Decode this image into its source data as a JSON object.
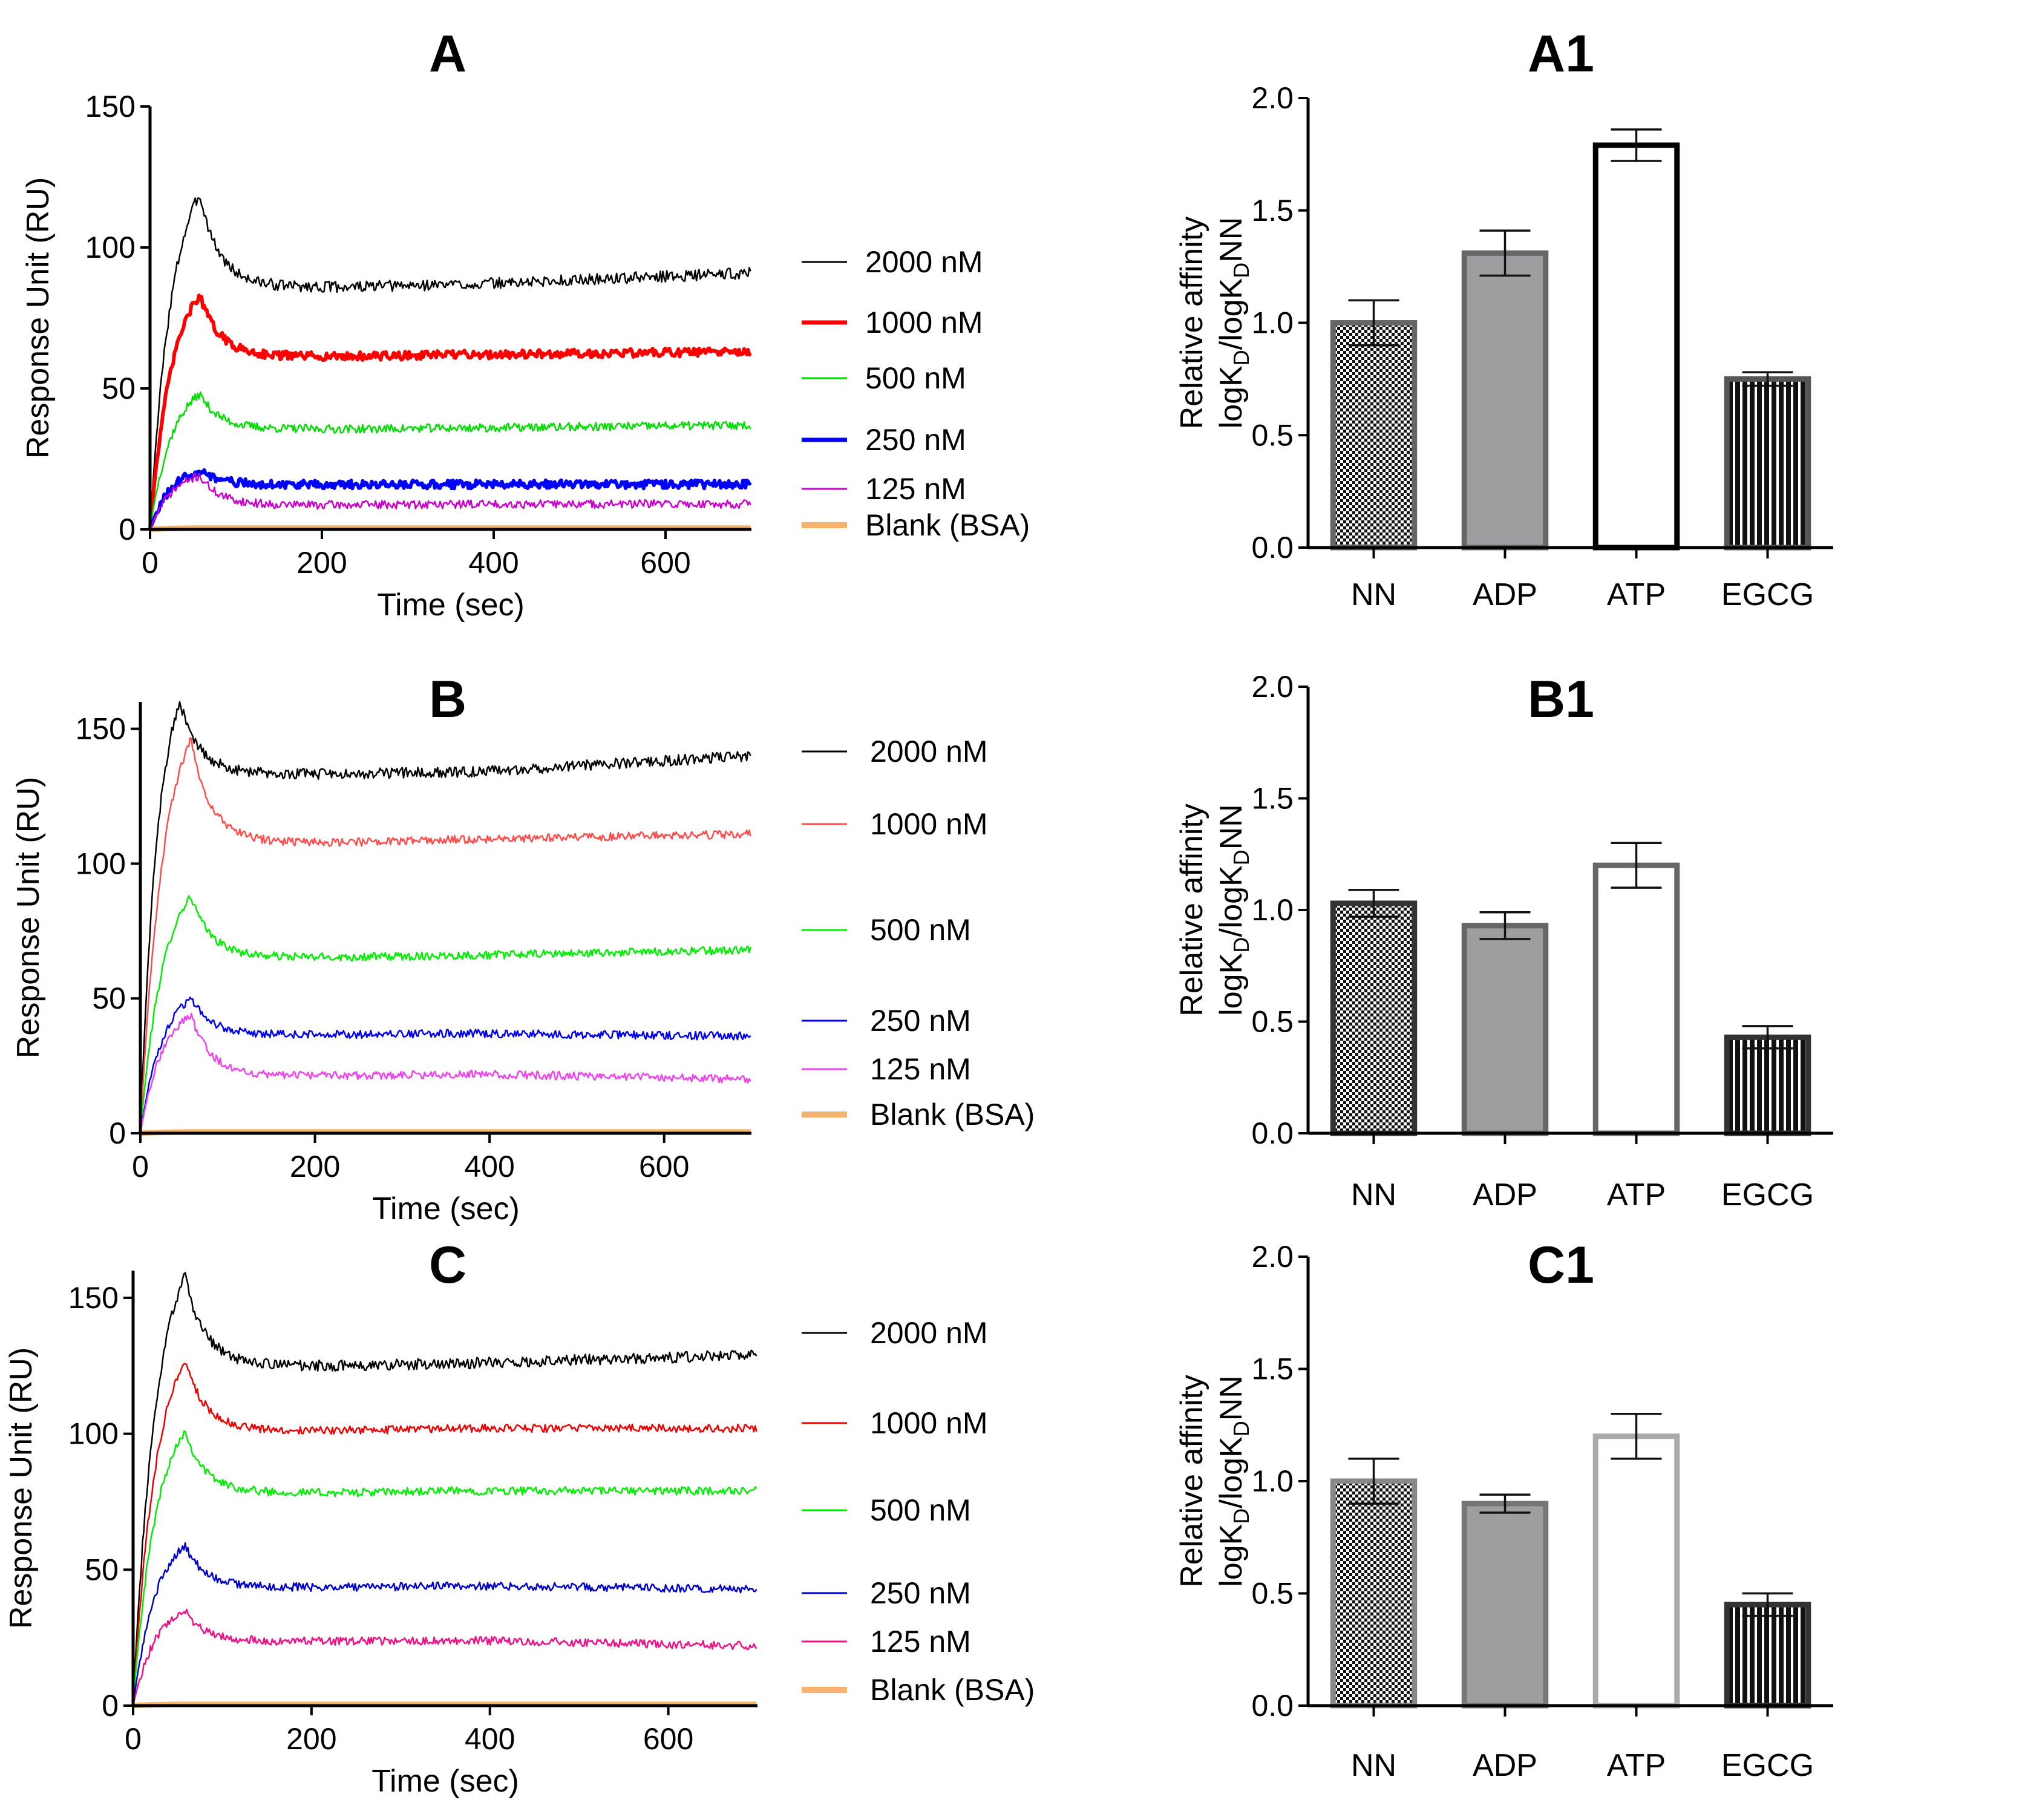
{
  "chart_data": [
    {
      "id": "A",
      "type": "line",
      "title": "A",
      "xlabel": "Time (sec)",
      "ylabel": "Response Unit (RU)",
      "xlim": [
        0,
        700
      ],
      "ylim": [
        0,
        150
      ],
      "xticks": [
        "0",
        "200",
        "400",
        "600"
      ],
      "yticks": [
        "0",
        "50",
        "100",
        "150"
      ],
      "grid": false,
      "legend_position": "right",
      "series": [
        {
          "name": "2000 nM",
          "color": "#000000",
          "width": "thin",
          "peak_time": 58,
          "peak": 119,
          "plateau": 87,
          "end": 91,
          "noise": 2
        },
        {
          "name": "1000 nM",
          "color": "#ff0000",
          "width": "thick",
          "peak_time": 58,
          "peak": 83,
          "plateau": 62,
          "end": 63,
          "noise": 1.5
        },
        {
          "name": "500 nM",
          "color": "#00dd00",
          "width": "thin",
          "peak_time": 58,
          "peak": 48,
          "plateau": 36,
          "end": 37,
          "noise": 1.5
        },
        {
          "name": "250 nM",
          "color": "#0000ff",
          "width": "thick",
          "peak_time": 58,
          "peak": 21,
          "plateau": 16,
          "end": 16,
          "noise": 1.5
        },
        {
          "name": "125 nM",
          "color": "#cc00cc",
          "width": "thin",
          "peak_time": 58,
          "peak": 19,
          "plateau": 9,
          "end": 9,
          "noise": 1.5
        },
        {
          "name": "Blank (BSA)",
          "color": "#f7b36b",
          "width": "blank",
          "peak_time": 58,
          "peak": 0.5,
          "plateau": 0.5,
          "end": 0.5,
          "noise": 0
        }
      ]
    },
    {
      "id": "B",
      "type": "line",
      "title": "B",
      "xlabel": "Time (sec)",
      "ylabel": "Response Unit (RU)",
      "xlim": [
        0,
        700
      ],
      "ylim": [
        0,
        160
      ],
      "xticks": [
        "0",
        "200",
        "400",
        "600"
      ],
      "yticks": [
        "0",
        "50",
        "100",
        "150"
      ],
      "grid": false,
      "legend_position": "right",
      "series": [
        {
          "name": "2000 nM",
          "color": "#000000",
          "width": "thin",
          "peak_time": 45,
          "peak": 160,
          "plateau": 134,
          "end": 140,
          "noise": 2
        },
        {
          "name": "1000 nM",
          "color": "#ff4d4d",
          "width": "thin",
          "peak_time": 58,
          "peak": 146,
          "plateau": 109,
          "end": 111,
          "noise": 1.5
        },
        {
          "name": "500 nM",
          "color": "#00ee00",
          "width": "thin",
          "peak_time": 58,
          "peak": 88,
          "plateau": 66,
          "end": 68,
          "noise": 1.5
        },
        {
          "name": "250 nM",
          "color": "#0000ee",
          "width": "thin",
          "peak_time": 58,
          "peak": 50,
          "plateau": 37,
          "end": 36,
          "noise": 1.5
        },
        {
          "name": "125 nM",
          "color": "#ee44ee",
          "width": "thin",
          "peak_time": 58,
          "peak": 44,
          "plateau": 22,
          "end": 20,
          "noise": 1.5
        },
        {
          "name": "Blank (BSA)",
          "color": "#f7b36b",
          "width": "blank",
          "peak_time": 58,
          "peak": 0.5,
          "plateau": 0.5,
          "end": 0.5,
          "noise": 0
        }
      ]
    },
    {
      "id": "C",
      "type": "line",
      "title": "C",
      "xlabel": "Time (sec)",
      "ylabel": "Response Unit (RU)",
      "xlim": [
        0,
        700
      ],
      "ylim": [
        0,
        160
      ],
      "xticks": [
        "0",
        "200",
        "400",
        "600"
      ],
      "yticks": [
        "0",
        "50",
        "100",
        "150"
      ],
      "grid": false,
      "legend_position": "right",
      "series": [
        {
          "name": "2000 nM",
          "color": "#000000",
          "width": "thin",
          "peak_time": 58,
          "peak": 158,
          "plateau": 126,
          "end": 129,
          "noise": 2
        },
        {
          "name": "1000 nM",
          "color": "#ee0000",
          "width": "thin",
          "peak_time": 58,
          "peak": 127,
          "plateau": 102,
          "end": 102,
          "noise": 1.5
        },
        {
          "name": "500 nM",
          "color": "#00ee00",
          "width": "thin",
          "peak_time": 58,
          "peak": 101,
          "plateau": 79,
          "end": 79,
          "noise": 1.5
        },
        {
          "name": "250 nM",
          "color": "#0000cc",
          "width": "thin",
          "peak_time": 58,
          "peak": 59,
          "plateau": 44,
          "end": 43,
          "noise": 1.5
        },
        {
          "name": "125 nM",
          "color": "#ee1188",
          "width": "thin",
          "peak_time": 58,
          "peak": 35,
          "plateau": 24,
          "end": 22,
          "noise": 1.5
        },
        {
          "name": "Blank (BSA)",
          "color": "#f7b36b",
          "width": "blank",
          "peak_time": 58,
          "peak": 0.5,
          "plateau": 0.5,
          "end": 0.5,
          "noise": 0
        }
      ]
    },
    {
      "id": "A1",
      "type": "bar",
      "title": "A1",
      "xlabel": "",
      "ylabel_line1": "Relative affinity",
      "ylabel_line2": "logK",
      "ylabel_sub": "D",
      "ylabel_mid": "/logK",
      "ylabel_end": "NN",
      "ylim": [
        0,
        2.0
      ],
      "yticks": [
        "0.0",
        "0.5",
        "1.0",
        "1.5",
        "2.0"
      ],
      "categories": [
        "NN",
        "ADP",
        "ATP",
        "EGCG"
      ],
      "values": [
        1.0,
        1.31,
        1.79,
        0.75
      ],
      "errors": [
        0.1,
        0.1,
        0.07,
        0.03
      ],
      "bar_styles": [
        "checker",
        "gray",
        "white",
        "stripes"
      ],
      "bar_edge_colors": [
        "#666666",
        "#666666",
        "#000000",
        "#555555"
      ]
    },
    {
      "id": "B1",
      "type": "bar",
      "title": "B1",
      "xlabel": "",
      "ylabel_line1": "Relative affinity",
      "ylabel_line2": "logK",
      "ylabel_sub": "D",
      "ylabel_mid": "/logK",
      "ylabel_end": "NN",
      "ylim": [
        0,
        2.0
      ],
      "yticks": [
        "0.0",
        "0.5",
        "1.0",
        "1.5",
        "2.0"
      ],
      "categories": [
        "NN",
        "ADP",
        "ATP",
        "EGCG"
      ],
      "values": [
        1.03,
        0.93,
        1.2,
        0.43
      ],
      "errors": [
        0.06,
        0.06,
        0.1,
        0.05
      ],
      "bar_styles": [
        "checker",
        "gray",
        "white",
        "stripes"
      ],
      "bar_edge_colors": [
        "#333333",
        "#666666",
        "#666666",
        "#333333"
      ]
    },
    {
      "id": "C1",
      "type": "bar",
      "title": "C1",
      "xlabel": "",
      "ylabel_line1": "Relative affinity",
      "ylabel_line2": "logK",
      "ylabel_sub": "D",
      "ylabel_mid": "/logK",
      "ylabel_end": "NN",
      "ylim": [
        0,
        2.0
      ],
      "yticks": [
        "0.0",
        "0.5",
        "1.0",
        "1.5",
        "2.0"
      ],
      "categories": [
        "NN",
        "ADP",
        "ATP",
        "EGCG"
      ],
      "values": [
        1.0,
        0.9,
        1.2,
        0.45
      ],
      "errors": [
        0.1,
        0.04,
        0.1,
        0.05
      ],
      "bar_styles": [
        "checker",
        "gray",
        "white",
        "stripes"
      ],
      "bar_edge_colors": [
        "#888888",
        "#777777",
        "#aaaaaa",
        "#333333"
      ]
    }
  ]
}
